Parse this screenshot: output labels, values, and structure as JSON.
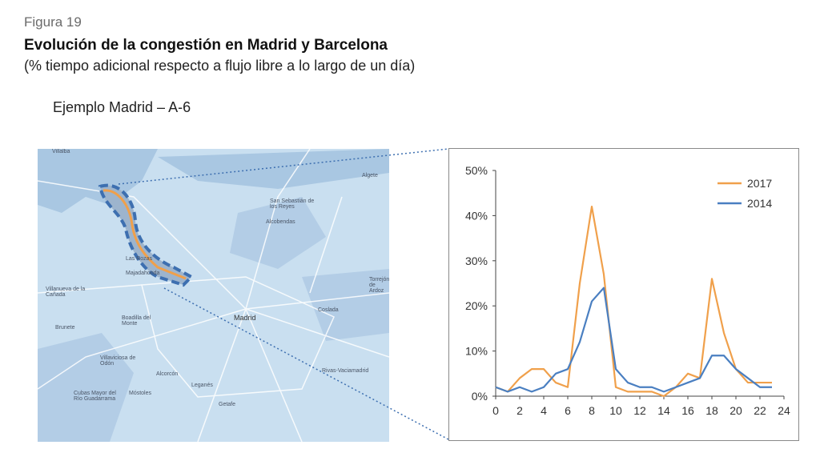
{
  "figure": {
    "label": "Figura 19",
    "title": "Evolución de la congestión en Madrid y Barcelona",
    "subtitle": "(% tiempo adicional respecto a flujo libre a lo largo de un día)",
    "example": "Ejemplo Madrid – A-6"
  },
  "map": {
    "labels": {
      "villalba": "Villalba",
      "algete": "Algete",
      "sanseb": "San Sebastián de los Reyes",
      "alcobendas": "Alcobendas",
      "lasrozas": "Las Rozas",
      "majadahonda": "Majadahonda",
      "villanueva": "Villanueva de la Cañada",
      "boadilla": "Boadilla del Monte",
      "brunete": "Brunete",
      "madrid": "Madrid",
      "coslada": "Coslada",
      "torrejon": "Torrejón de Ardoz",
      "villaviciosa": "Villaviciosa de Odón",
      "alcorcon": "Alcorcón",
      "leganes": "Leganés",
      "mostoles": "Móstoles",
      "getafe": "Getafe",
      "rivas": "Rivas-Vaciamadrid",
      "casarrubuelos": "Cubas Mayor del Río Guadarrama"
    },
    "colors": {
      "water": "#c9dff0",
      "land": "#a9c7e2",
      "route_highlight": "#f0a04b",
      "route_outline": "#3d6fb0"
    }
  },
  "chart_data": {
    "type": "line",
    "x": [
      0,
      1,
      2,
      3,
      4,
      5,
      6,
      7,
      8,
      9,
      10,
      11,
      12,
      13,
      14,
      15,
      16,
      17,
      18,
      19,
      20,
      21,
      22,
      23
    ],
    "series": [
      {
        "name": "2017",
        "color": "#f0a04b",
        "values": [
          2,
          1,
          4,
          6,
          6,
          3,
          2,
          25,
          42,
          27,
          2,
          1,
          1,
          1,
          0,
          2,
          5,
          4,
          26,
          14,
          6,
          3,
          3,
          3
        ]
      },
      {
        "name": "2014",
        "color": "#4a7fc1",
        "values": [
          2,
          1,
          2,
          1,
          2,
          5,
          6,
          12,
          21,
          24,
          6,
          3,
          2,
          2,
          1,
          2,
          3,
          4,
          9,
          9,
          6,
          4,
          2,
          2
        ]
      }
    ],
    "xticks": [
      "0",
      "2",
      "4",
      "6",
      "8",
      "10",
      "12",
      "14",
      "16",
      "18",
      "20",
      "22",
      "24"
    ],
    "yticks": [
      "0%",
      "10%",
      "20%",
      "30%",
      "40%",
      "50%"
    ],
    "xlim": [
      0,
      24
    ],
    "ylim": [
      0,
      50
    ],
    "legend_position": "top-right",
    "grid": false
  }
}
